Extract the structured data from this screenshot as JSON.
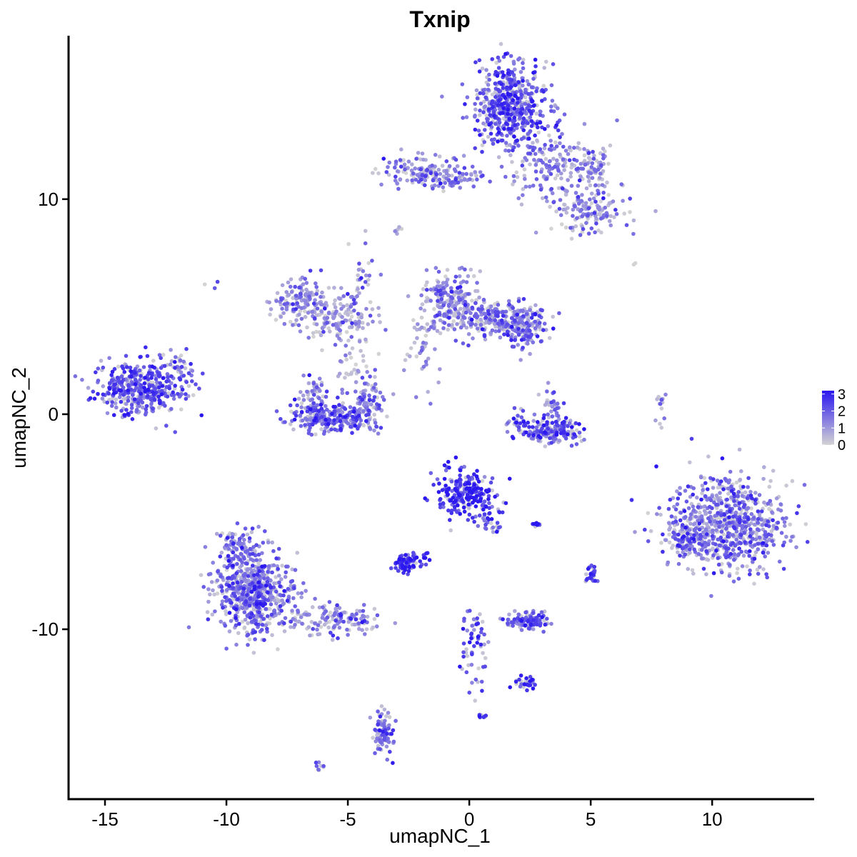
{
  "chart_data": {
    "type": "scatter",
    "title": "Txnip",
    "xlabel": "umapNC_1",
    "ylabel": "umapNC_2",
    "xlim": [
      -16.5,
      14.2
    ],
    "ylim": [
      -17.9,
      17.6
    ],
    "xticks": [
      -15,
      -10,
      -5,
      0,
      5,
      10
    ],
    "xtick_labels": [
      "-15",
      "-10",
      "-5",
      "0",
      "5",
      "10"
    ],
    "yticks": [
      -10,
      0,
      10
    ],
    "ytick_labels": [
      "-10",
      "0",
      "10"
    ],
    "grid": false,
    "color_scale": {
      "low": "#d3d3d3",
      "high": "#2b17f0",
      "min": 0,
      "max": 3.2,
      "ticks": [
        0,
        1,
        2,
        3
      ],
      "tick_labels": [
        "0",
        "1",
        "2",
        "3"
      ],
      "placement": "right"
    },
    "clusters": [
      {
        "x": 1.7,
        "y": 14.3,
        "sx": 0.7,
        "sy": 1.0,
        "n": 520,
        "expr": 2.1
      },
      {
        "x": 3.6,
        "y": 11.5,
        "sx": 1.0,
        "sy": 0.9,
        "n": 180,
        "expr": 1.3
      },
      {
        "x": 5.0,
        "y": 9.5,
        "sx": 0.7,
        "sy": 0.5,
        "n": 130,
        "expr": 1.2
      },
      {
        "x": 5.2,
        "y": 11.5,
        "sx": 0.4,
        "sy": 0.4,
        "n": 50,
        "expr": 0.9
      },
      {
        "x": -2.0,
        "y": 11.3,
        "sx": 0.9,
        "sy": 0.4,
        "n": 130,
        "expr": 1.4
      },
      {
        "x": -0.5,
        "y": 11.0,
        "sx": 0.8,
        "sy": 0.2,
        "n": 50,
        "expr": 1.5
      },
      {
        "x": -7.0,
        "y": 5.3,
        "sx": 0.5,
        "sy": 0.5,
        "n": 130,
        "expr": 1.1
      },
      {
        "x": -5.5,
        "y": 4.5,
        "sx": 0.9,
        "sy": 0.6,
        "n": 160,
        "expr": 1.0
      },
      {
        "x": -4.5,
        "y": 6.0,
        "sx": 0.3,
        "sy": 0.8,
        "n": 30,
        "expr": 1.6
      },
      {
        "x": -0.8,
        "y": 5.3,
        "sx": 0.6,
        "sy": 0.7,
        "n": 200,
        "expr": 1.3
      },
      {
        "x": 0.9,
        "y": 4.4,
        "sx": 0.8,
        "sy": 0.4,
        "n": 170,
        "expr": 1.2
      },
      {
        "x": 2.3,
        "y": 4.1,
        "sx": 0.5,
        "sy": 0.5,
        "n": 160,
        "expr": 1.7
      },
      {
        "x": -1.8,
        "y": 3.5,
        "sx": 0.4,
        "sy": 1.2,
        "n": 50,
        "expr": 0.8
      },
      {
        "x": -5.8,
        "y": -0.2,
        "sx": 0.8,
        "sy": 0.35,
        "n": 220,
        "expr": 1.8
      },
      {
        "x": -6.4,
        "y": 0.6,
        "sx": 0.3,
        "sy": 0.5,
        "n": 70,
        "expr": 1.7
      },
      {
        "x": -4.1,
        "y": 0.6,
        "sx": 0.35,
        "sy": 0.6,
        "n": 90,
        "expr": 1.5
      },
      {
        "x": -4.8,
        "y": 2.2,
        "sx": 0.3,
        "sy": 0.6,
        "n": 30,
        "expr": 1.0
      },
      {
        "x": 3.6,
        "y": -0.8,
        "sx": 0.55,
        "sy": 0.25,
        "n": 130,
        "expr": 2.3
      },
      {
        "x": 2.3,
        "y": -0.5,
        "sx": 0.5,
        "sy": 0.3,
        "n": 50,
        "expr": 2.1
      },
      {
        "x": 3.4,
        "y": 0.5,
        "sx": 0.25,
        "sy": 0.5,
        "n": 30,
        "expr": 1.6
      },
      {
        "x": -13.5,
        "y": 1.2,
        "sx": 0.9,
        "sy": 0.65,
        "n": 400,
        "expr": 2.1
      },
      {
        "x": -11.9,
        "y": 2.2,
        "sx": 0.3,
        "sy": 0.35,
        "n": 25,
        "expr": 1.3
      },
      {
        "x": 10.8,
        "y": -5.0,
        "sx": 1.2,
        "sy": 1.1,
        "n": 650,
        "expr": 1.6
      },
      {
        "x": 9.0,
        "y": -5.8,
        "sx": 0.5,
        "sy": 0.6,
        "n": 120,
        "expr": 1.5
      },
      {
        "x": -0.2,
        "y": -3.6,
        "sx": 0.6,
        "sy": 0.55,
        "n": 230,
        "expr": 2.7
      },
      {
        "x": 0.9,
        "y": -4.8,
        "sx": 0.35,
        "sy": 0.35,
        "n": 30,
        "expr": 2.0
      },
      {
        "x": -8.8,
        "y": -8.5,
        "sx": 0.85,
        "sy": 0.9,
        "n": 550,
        "expr": 1.6
      },
      {
        "x": -9.5,
        "y": -6.5,
        "sx": 0.5,
        "sy": 0.7,
        "n": 120,
        "expr": 1.8
      },
      {
        "x": -5.5,
        "y": -9.5,
        "sx": 0.9,
        "sy": 0.4,
        "n": 140,
        "expr": 1.3
      },
      {
        "x": -2.6,
        "y": -6.9,
        "sx": 0.25,
        "sy": 0.2,
        "n": 90,
        "expr": 2.5
      },
      {
        "x": 2.4,
        "y": -9.6,
        "sx": 0.4,
        "sy": 0.2,
        "n": 110,
        "expr": 1.9
      },
      {
        "x": 0.2,
        "y": -11.0,
        "sx": 0.3,
        "sy": 0.8,
        "n": 60,
        "expr": 2.1
      },
      {
        "x": 2.3,
        "y": -12.5,
        "sx": 0.25,
        "sy": 0.15,
        "n": 30,
        "expr": 2.5
      },
      {
        "x": -3.5,
        "y": -14.8,
        "sx": 0.2,
        "sy": 0.5,
        "n": 90,
        "expr": 1.6
      },
      {
        "x": 5.0,
        "y": -7.5,
        "sx": 0.15,
        "sy": 0.25,
        "n": 25,
        "expr": 2.4
      },
      {
        "x": 2.8,
        "y": -5.1,
        "sx": 0.1,
        "sy": 0.1,
        "n": 10,
        "expr": 2.8
      },
      {
        "x": 0.6,
        "y": -14.1,
        "sx": 0.1,
        "sy": 0.1,
        "n": 8,
        "expr": 2.8
      },
      {
        "x": -6.1,
        "y": -16.4,
        "sx": 0.12,
        "sy": 0.1,
        "n": 8,
        "expr": 1.6
      },
      {
        "x": 7.9,
        "y": 0.5,
        "sx": 0.1,
        "sy": 0.4,
        "n": 15,
        "expr": 1.0
      },
      {
        "x": -3.0,
        "y": 8.6,
        "sx": 0.1,
        "sy": 0.15,
        "n": 6,
        "expr": 1.2
      },
      {
        "x": -10.6,
        "y": 6.1,
        "sx": 0.08,
        "sy": 0.08,
        "n": 3,
        "expr": 1.0
      },
      {
        "x": -1.8,
        "y": -6.6,
        "sx": 0.1,
        "sy": 0.1,
        "n": 6,
        "expr": 3.0
      },
      {
        "x": 6.8,
        "y": 7.0,
        "sx": 0.05,
        "sy": 0.05,
        "n": 2,
        "expr": 0.2
      }
    ]
  }
}
